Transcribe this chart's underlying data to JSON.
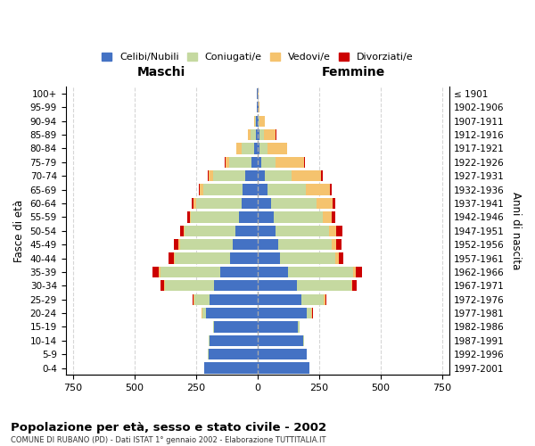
{
  "age_groups": [
    "0-4",
    "5-9",
    "10-14",
    "15-19",
    "20-24",
    "25-29",
    "30-34",
    "35-39",
    "40-44",
    "45-49",
    "50-54",
    "55-59",
    "60-64",
    "65-69",
    "70-74",
    "75-79",
    "80-84",
    "85-89",
    "90-94",
    "95-99",
    "100+"
  ],
  "birth_years": [
    "1997-2001",
    "1992-1996",
    "1987-1991",
    "1982-1986",
    "1977-1981",
    "1972-1976",
    "1967-1971",
    "1962-1966",
    "1957-1961",
    "1952-1956",
    "1947-1951",
    "1942-1946",
    "1937-1941",
    "1932-1936",
    "1927-1931",
    "1922-1926",
    "1917-1921",
    "1912-1916",
    "1907-1911",
    "1902-1906",
    "≤ 1901"
  ],
  "maschi": {
    "celibi": [
      215,
      200,
      195,
      175,
      210,
      195,
      175,
      150,
      110,
      100,
      90,
      75,
      65,
      60,
      50,
      25,
      15,
      8,
      5,
      2,
      2
    ],
    "coniugati": [
      2,
      2,
      5,
      5,
      15,
      60,
      200,
      245,
      225,
      215,
      205,
      195,
      185,
      160,
      130,
      90,
      50,
      20,
      5,
      2,
      0
    ],
    "vedovi": [
      0,
      0,
      0,
      1,
      2,
      5,
      3,
      5,
      5,
      5,
      5,
      5,
      10,
      15,
      20,
      15,
      20,
      10,
      2,
      0,
      0
    ],
    "divorziati": [
      0,
      0,
      0,
      1,
      2,
      5,
      15,
      25,
      20,
      20,
      15,
      10,
      8,
      5,
      3,
      2,
      0,
      0,
      0,
      0,
      0
    ]
  },
  "femmine": {
    "nubili": [
      210,
      200,
      185,
      165,
      200,
      180,
      160,
      125,
      90,
      85,
      75,
      65,
      55,
      40,
      30,
      15,
      10,
      10,
      5,
      3,
      2
    ],
    "coniugate": [
      2,
      2,
      3,
      5,
      20,
      90,
      220,
      265,
      225,
      215,
      215,
      200,
      185,
      155,
      110,
      60,
      30,
      15,
      5,
      2,
      0
    ],
    "vedove": [
      0,
      0,
      0,
      1,
      2,
      5,
      5,
      10,
      15,
      20,
      30,
      35,
      65,
      100,
      120,
      115,
      80,
      50,
      20,
      5,
      2
    ],
    "divorziate": [
      0,
      0,
      0,
      1,
      2,
      5,
      20,
      25,
      18,
      20,
      25,
      15,
      10,
      8,
      5,
      3,
      2,
      2,
      0,
      0,
      0
    ]
  },
  "colors": {
    "celibi": "#4472c4",
    "coniugati": "#c5d9a0",
    "vedovi": "#f5c36e",
    "divorziati": "#cc0000"
  },
  "title": "Popolazione per età, sesso e stato civile - 2002",
  "subtitle": "COMUNE DI RUBANO (PD) - Dati ISTAT 1° gennaio 2002 - Elaborazione TUTTITALIA.IT",
  "xlabel_left": "Maschi",
  "xlabel_right": "Femmine",
  "ylabel_left": "Fasce di età",
  "ylabel_right": "Anni di nascita",
  "xlim": 780,
  "xticks": [
    -750,
    -500,
    -250,
    0,
    250,
    500,
    750
  ],
  "xtick_labels": [
    "750",
    "500",
    "250",
    "0",
    "250",
    "500",
    "750"
  ],
  "legend_labels": [
    "Celibi/Nubili",
    "Coniugati/e",
    "Vedovi/e",
    "Divorziati/e"
  ],
  "background_color": "#ffffff",
  "bar_height": 0.8
}
